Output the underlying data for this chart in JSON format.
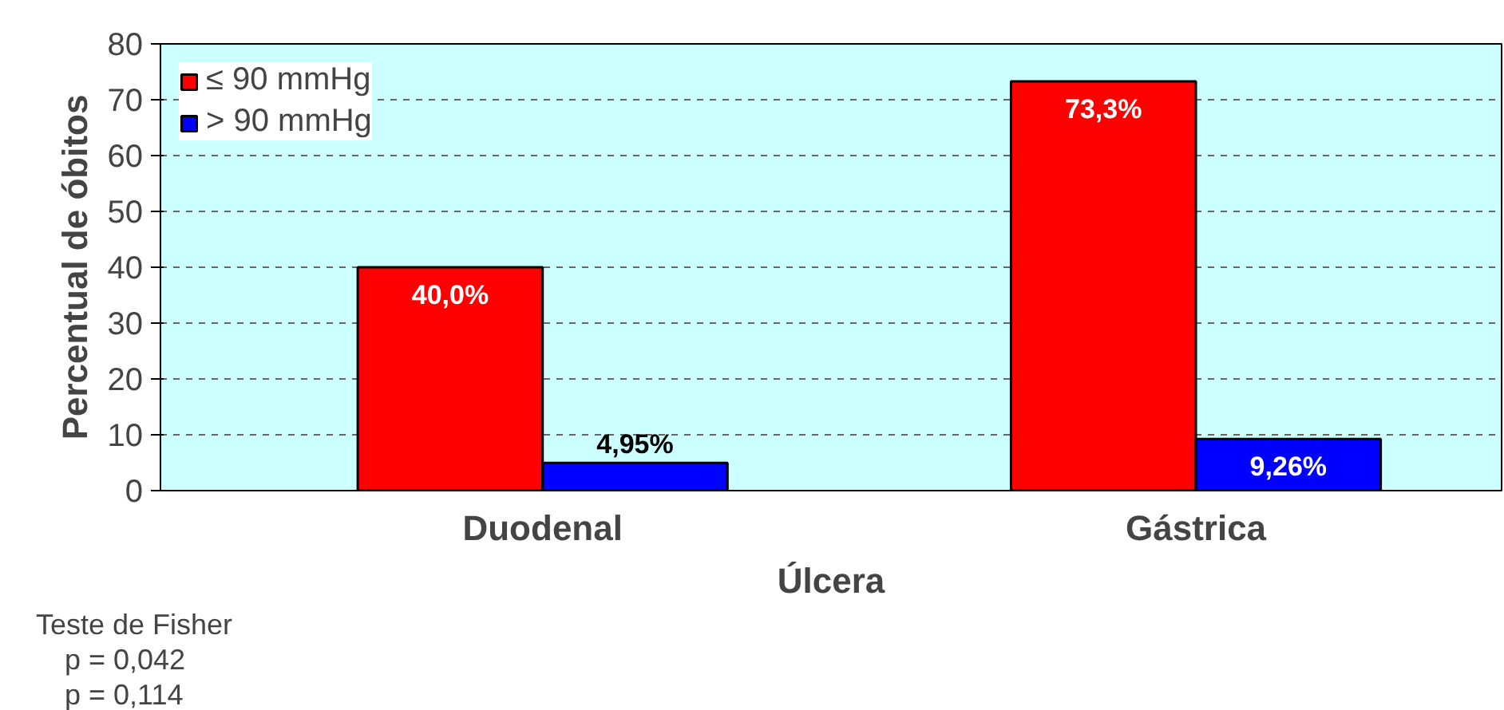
{
  "chart_data": {
    "type": "bar",
    "xlabel": "Úlcera",
    "ylabel": "Percentual de óbitos",
    "categories": [
      "Duodenal",
      "Gástrica"
    ],
    "series": [
      {
        "name": "≤ 90 mmHg",
        "color": "#ff0000",
        "values": [
          40.0,
          73.3
        ],
        "value_labels": [
          "40,0%",
          "73,3%"
        ]
      },
      {
        "name": "> 90 mmHg",
        "color": "#0000ff",
        "values": [
          4.95,
          9.26
        ],
        "value_labels": [
          "4,95%",
          "9,26%"
        ]
      }
    ],
    "ylim": [
      0,
      80
    ],
    "yticks": [
      0,
      10,
      20,
      30,
      40,
      50,
      60,
      70,
      80
    ],
    "grid": "y",
    "legend": "top left",
    "annotations": [
      "Teste de Fisher",
      "p = 0,042",
      "p = 0,114"
    ]
  }
}
